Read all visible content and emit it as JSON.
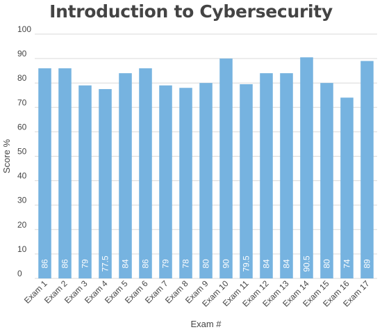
{
  "chart_data": {
    "type": "bar",
    "title": "Introduction to Cybersecurity",
    "xlabel": "Exam #",
    "ylabel": "Score %",
    "ylim": [
      0,
      100
    ],
    "yticks": [
      0,
      10,
      20,
      30,
      40,
      50,
      60,
      70,
      80,
      90,
      100
    ],
    "grid": true,
    "categories": [
      "Exam 1",
      "Exam 2",
      "Exam 3",
      "Exam 4",
      "Exam 5",
      "Exam 6",
      "Exam 7",
      "Exam 8",
      "Exam 9",
      "Exam 10",
      "Exam 11",
      "Exam 12",
      "Exam 13",
      "Exam 14",
      "Exam 15",
      "Exam 16",
      "Exam 17"
    ],
    "values": [
      86,
      86,
      79,
      77.5,
      84,
      86,
      79,
      78,
      80,
      90,
      79.5,
      84,
      84,
      90.5,
      80,
      74,
      89
    ],
    "value_labels": [
      "86",
      "86",
      "79",
      "77.5",
      "84",
      "86",
      "79",
      "78",
      "80",
      "90",
      "79.5",
      "84",
      "84",
      "90.5",
      "80",
      "74",
      "89"
    ],
    "bar_color": "#76b3e0",
    "grid_color": "#d9d9d9"
  }
}
